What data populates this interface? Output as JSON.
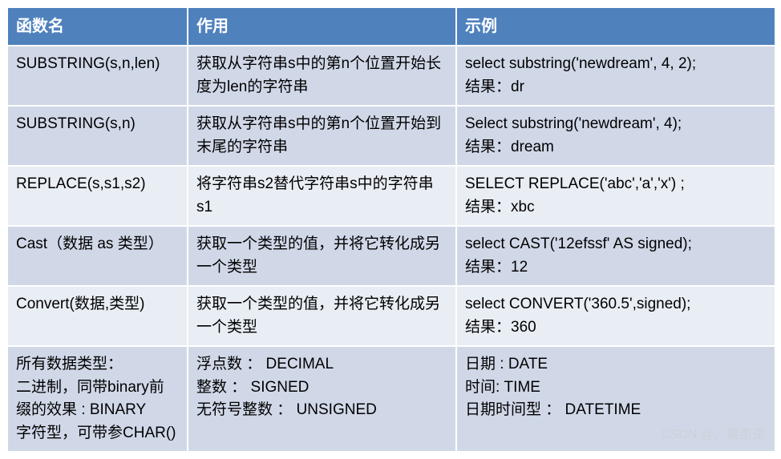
{
  "header": {
    "col1": "函数名",
    "col2": "作用",
    "col3": "示例"
  },
  "rows": [
    {
      "c1": "SUBSTRING(s,n,len)",
      "c2": "获取从字符串s中的第n个位置开始长度为len的字符串",
      "c3": "select substring('newdream', 4, 2);\n结果：dr"
    },
    {
      "c1": "SUBSTRING(s,n)",
      "c2": "获取从字符串s中的第n个位置开始到末尾的字符串",
      "c3": "Select substring('newdream', 4);\n结果：dream"
    },
    {
      "c1": "REPLACE(s,s1,s2)",
      "c2": "将字符串s2替代字符串s中的字符串s1",
      "c3": "SELECT REPLACE('abc','a','x') ;\n结果：xbc"
    },
    {
      "c1": "Cast（数据 as  类型）",
      "c2": "获取一个类型的值，并将它转化成另一个类型",
      "c3": "select  CAST('12efssf' AS signed);\n结果：12"
    },
    {
      "c1": "Convert(数据,类型)",
      "c2": "获取一个类型的值，并将它转化成另一个类型",
      "c3": "select CONVERT('360.5',signed);\n结果：360"
    },
    {
      "c1": "所有数据类型：\n二进制，同带binary前缀的效果 : BINARY\n 字符型，可带参CHAR()",
      "c2": "浮点数 ： DECIMAL\n整数 ： SIGNED\n无符号整数 ： UNSIGNED",
      "c3": "日期 : DATE\n时间:  TIME\n日期时间型 ： DATETIME"
    }
  ],
  "watermark": "CSDN @、爽歪歪",
  "colors": {
    "header_bg": "#4f81bd",
    "header_fg": "#ffffff",
    "row_odd_bg": "#d0d8e8",
    "row_even_bg": "#e9edf4",
    "border": "#ffffff"
  }
}
